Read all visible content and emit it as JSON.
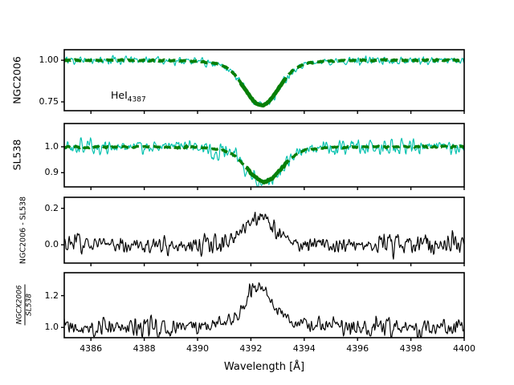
{
  "figure_title": "",
  "chart_data": {
    "type": "line",
    "title": "",
    "xlabel": "Wavelength [Å]",
    "xlim": [
      4385,
      4400
    ],
    "xticks": [
      4386,
      4388,
      4390,
      4392,
      4394,
      4396,
      4398,
      4400
    ],
    "grid": false,
    "legend": null,
    "colors": {
      "observed": "#00c1ae",
      "model_fit": "#077f07",
      "residual": "#000000",
      "axes": "#000000"
    },
    "panels": [
      {
        "id": "ngc2006-spectrum",
        "ylabel": "NGC2006",
        "ylim": [
          0.697,
          1.063
        ],
        "ytick_labels": [
          "1.00",
          "0.75"
        ],
        "ytick_values": [
          1.0,
          0.75
        ],
        "annotation": {
          "text": "HeI",
          "subscript": "4387",
          "x": 4386.8,
          "y": 0.78
        },
        "series": [
          {
            "name": "observed spectrum NGC2006",
            "style": "noisy-line",
            "color": "#00c1ae",
            "baseline": 1.0,
            "noise_amp": 0.025,
            "seed": 11,
            "line_profile": {
              "center": 4392.4,
              "amplitude": -0.27,
              "sigma": 0.62,
              "wing_fraction": 0.12,
              "wing_scale": 2.2
            }
          },
          {
            "name": "model fit NGC2006",
            "style": "dashed-line",
            "color": "#077f07",
            "width": 3.8,
            "baseline": 1.0,
            "noise_amp": 0.004,
            "seed": 12,
            "solid_core": [
              4391.6,
              4393.3
            ],
            "line_profile": {
              "center": 4392.4,
              "amplitude": -0.27,
              "sigma": 0.62,
              "wing_fraction": 0.12,
              "wing_scale": 2.2
            },
            "model_points": {
              "x": [
                4385,
                4385.5,
                4386,
                4386.5,
                4387,
                4387.5,
                4388,
                4388.5,
                4389,
                4389.5,
                4390,
                4390.5,
                4391,
                4391.5,
                4392,
                4392.5,
                4393,
                4393.5,
                4394,
                4394.5,
                4395,
                4395.5,
                4396,
                4396.5,
                4397,
                4397.5,
                4398,
                4398.5,
                4399,
                4399.5,
                4400
              ],
              "y": [
                1.0,
                1.0,
                1.0,
                1.0,
                1.0,
                1.0,
                1.0,
                1.0,
                1.0,
                1.0,
                1.0,
                0.998,
                0.979,
                0.906,
                0.781,
                0.734,
                0.831,
                0.944,
                0.99,
                0.999,
                1.0,
                1.0,
                1.0,
                1.0,
                1.0,
                1.0,
                1.0,
                1.0,
                1.0,
                1.0,
                1.0
              ]
            }
          }
        ]
      },
      {
        "id": "sl538-spectrum",
        "ylabel": "SL538",
        "ylim": [
          0.845,
          1.09
        ],
        "ytick_labels": [
          "1.0",
          "0.9"
        ],
        "ytick_values": [
          1.0,
          0.9
        ],
        "annotation": null,
        "series": [
          {
            "name": "observed spectrum SL538",
            "style": "noisy-line",
            "color": "#00c1ae",
            "baseline": 1.0,
            "noise_amp": 0.032,
            "seed": 21,
            "line_profile": {
              "center": 4392.5,
              "amplitude": -0.135,
              "sigma": 0.62,
              "wing_fraction": 0.12,
              "wing_scale": 2.2
            }
          },
          {
            "name": "model fit SL538",
            "style": "dashed-line",
            "color": "#077f07",
            "width": 3.4,
            "baseline": 1.0,
            "noise_amp": 0.004,
            "seed": 22,
            "solid_core": [
              4391.8,
              4393.4
            ],
            "line_profile": {
              "center": 4392.5,
              "amplitude": -0.135,
              "sigma": 0.62,
              "wing_fraction": 0.12,
              "wing_scale": 2.2
            },
            "model_points": {
              "x": [
                4385,
                4385.5,
                4386,
                4386.5,
                4387,
                4387.5,
                4388,
                4388.5,
                4389,
                4389.5,
                4390,
                4390.5,
                4391,
                4391.5,
                4392,
                4392.5,
                4393,
                4393.5,
                4394,
                4394.5,
                4395,
                4395.5,
                4396,
                4396.5,
                4397,
                4397.5,
                4398,
                4398.5,
                4399,
                4399.5,
                4400
              ],
              "y": [
                1.0,
                1.0,
                1.0,
                1.0,
                1.0,
                1.0,
                1.0,
                1.0,
                1.0,
                1.0,
                1.0,
                1.0,
                0.993,
                0.963,
                0.903,
                0.865,
                0.903,
                0.963,
                0.993,
                1.0,
                1.0,
                1.0,
                1.0,
                1.0,
                1.0,
                1.0,
                1.0,
                1.0,
                1.0,
                1.0,
                1.0
              ]
            }
          }
        ]
      },
      {
        "id": "difference",
        "ylabel": "NGC2006 - SL538",
        "ylim": [
          -0.1,
          0.26
        ],
        "ytick_labels": [
          "0.2",
          "0.0"
        ],
        "ytick_values": [
          0.2,
          0.0
        ],
        "annotation": null,
        "series": [
          {
            "name": "difference NGC2006 minus SL538",
            "style": "noisy-line",
            "color": "#000000",
            "baseline": 0.0,
            "noise_amp": 0.055,
            "seed": 31,
            "line_profile": {
              "center": 4392.3,
              "amplitude": 0.16,
              "sigma": 0.5,
              "wing_fraction": 0.15,
              "wing_scale": 2.5
            },
            "profile_points": {
              "x": [
                4385,
                4385.5,
                4386,
                4386.5,
                4387,
                4387.5,
                4388,
                4388.5,
                4389,
                4389.5,
                4390,
                4390.5,
                4391,
                4391.5,
                4392,
                4392.5,
                4393,
                4393.5,
                4394,
                4394.5,
                4395,
                4395.5,
                4396,
                4396.5,
                4397,
                4397.5,
                4398,
                4398.5,
                4399,
                4399.5,
                4400
              ],
              "y": [
                0.0,
                0.0,
                0.0,
                0.0,
                0.0,
                0.0,
                0.0,
                0.0,
                0.0,
                0.0,
                0.0,
                0.0,
                0.0,
                0.044,
                0.134,
                0.148,
                0.06,
                0.009,
                0.001,
                0.0,
                0.0,
                0.0,
                0.0,
                0.0,
                0.0,
                0.0,
                0.0,
                0.0,
                0.0,
                0.0,
                0.0
              ]
            }
          }
        ]
      },
      {
        "id": "ratio",
        "ylabel_fraction": {
          "numerator": "NGCX2006",
          "denominator": "SL538"
        },
        "ylim": [
          0.935,
          1.345
        ],
        "ytick_labels": [
          "1.2",
          "1.0"
        ],
        "ytick_values": [
          1.2,
          1.0
        ],
        "annotation": null,
        "series": [
          {
            "name": "ratio NGCX2006 over SL538",
            "style": "noisy-line",
            "color": "#000000",
            "baseline": 1.0,
            "noise_amp": 0.062,
            "seed": 41,
            "line_profile": {
              "center": 4392.3,
              "amplitude": 0.25,
              "sigma": 0.5,
              "wing_fraction": 0.15,
              "wing_scale": 2.5
            },
            "profile_points": {
              "x": [
                4385,
                4385.5,
                4386,
                4386.5,
                4387,
                4387.5,
                4388,
                4388.5,
                4389,
                4389.5,
                4390,
                4390.5,
                4391,
                4391.5,
                4392,
                4392.5,
                4393,
                4393.5,
                4394,
                4394.5,
                4395,
                4395.5,
                4396,
                4396.5,
                4397,
                4397.5,
                4398,
                4398.5,
                4399,
                4399.5,
                4400
              ],
              "y": [
                1.0,
                1.0,
                1.0,
                1.0,
                1.0,
                1.0,
                1.0,
                1.0,
                1.0,
                1.0,
                1.0,
                1.0,
                1.0,
                1.07,
                1.209,
                1.231,
                1.094,
                1.014,
                1.001,
                1.0,
                1.0,
                1.0,
                1.0,
                1.0,
                1.0,
                1.0,
                1.0,
                1.0,
                1.0,
                1.0,
                1.0
              ]
            }
          }
        ]
      }
    ]
  }
}
